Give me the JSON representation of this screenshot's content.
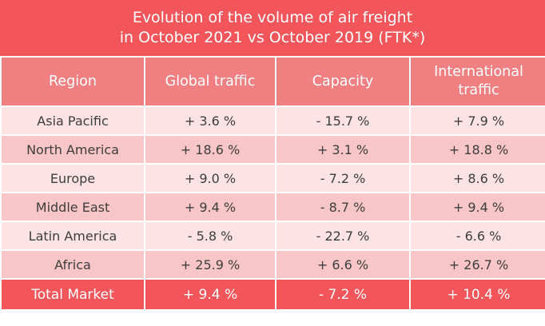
{
  "chart_data": {
    "type": "table",
    "title": [
      "Evolution of the volume of air freight",
      "in October 2021 vs October 2019 (FTK*)"
    ],
    "columns": [
      "Region",
      "Global traffic",
      "Capacity",
      "International traffic"
    ],
    "rows": [
      {
        "region": "Asia Pacific",
        "global": "+ 3.6 %",
        "capacity": "- 15.7 %",
        "international": "+ 7.9 %"
      },
      {
        "region": "North America",
        "global": "+ 18.6 %",
        "capacity": "+ 3.1 %",
        "international": "+ 18.8 %"
      },
      {
        "region": "Europe",
        "global": "+ 9.0 %",
        "capacity": "- 7.2 %",
        "international": "+ 8.6 %"
      },
      {
        "region": "Middle East",
        "global": "+ 9.4 %",
        "capacity": "- 8.7 %",
        "international": "+ 9.4 %"
      },
      {
        "region": "Latin America",
        "global": "- 5.8 %",
        "capacity": "- 22.7 %",
        "international": "- 6.6 %"
      },
      {
        "region": "Africa",
        "global": "+ 25.9 %",
        "capacity": "+ 6.6 %",
        "international": "+ 26.7 %"
      }
    ],
    "total": {
      "region": "Total Market",
      "global": "+ 9.4 %",
      "capacity": "- 7.2 %",
      "international": "+ 10.4 %"
    },
    "colors": {
      "header": "#f2555a",
      "column_header": "#f07f82",
      "row_light": "#fde3e3",
      "row_dark": "#f8c6c7",
      "total": "#f2555a"
    }
  }
}
